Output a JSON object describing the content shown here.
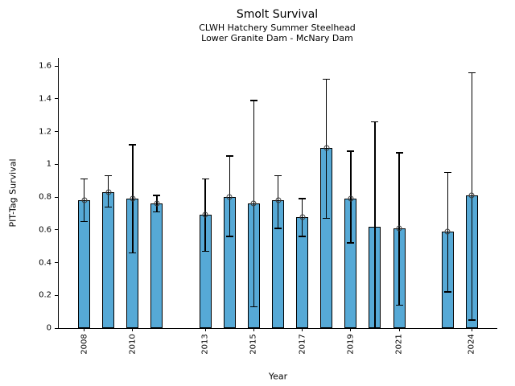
{
  "chart_data": {
    "type": "bar",
    "title": "Smolt Survival",
    "subtitle1": "CLWH Hatchery Summer Steelhead",
    "subtitle2": "Lower Granite Dam - McNary Dam",
    "xlabel": "Year",
    "ylabel": "PIT-Tag Survival",
    "ylim": [
      0,
      1.65
    ],
    "xlim": [
      2006.95,
      2025.05
    ],
    "grid": false,
    "legend": "none",
    "yticks": [
      {
        "v": 0,
        "label": "0"
      },
      {
        "v": 0.2,
        "label": "0.2"
      },
      {
        "v": 0.4,
        "label": "0.4"
      },
      {
        "v": 0.6,
        "label": "0.6"
      },
      {
        "v": 0.8,
        "label": "0.8"
      },
      {
        "v": 1,
        "label": "1"
      },
      {
        "v": 1.2,
        "label": "1.2"
      },
      {
        "v": 1.4,
        "label": "1.4"
      },
      {
        "v": 1.6,
        "label": "1.6"
      }
    ],
    "xticks": [
      "2008",
      "2010",
      "2013",
      "2015",
      "2017",
      "2019",
      "2021",
      "2024"
    ],
    "bar_fill_color": "#56a9d6",
    "bar_edge_color": "#000000",
    "error_bar_color": "#000000",
    "marker_style": "open-circle",
    "bars": [
      {
        "year": 2008,
        "value": 0.78,
        "err_lo": 0.65,
        "err_hi": 0.91,
        "marker": true
      },
      {
        "year": 2009,
        "value": 0.83,
        "err_lo": 0.74,
        "err_hi": 0.93,
        "marker": true
      },
      {
        "year": 2010,
        "value": 0.79,
        "err_lo": 0.46,
        "err_hi": 1.12,
        "marker": true
      },
      {
        "year": 2011,
        "value": 0.76,
        "err_lo": 0.71,
        "err_hi": 0.81,
        "marker": true
      },
      {
        "year": 2013,
        "value": 0.69,
        "err_lo": 0.47,
        "err_hi": 0.91,
        "marker": true
      },
      {
        "year": 2014,
        "value": 0.8,
        "err_lo": 0.56,
        "err_hi": 1.05,
        "marker": true
      },
      {
        "year": 2015,
        "value": 0.76,
        "err_lo": 0.13,
        "err_hi": 1.39,
        "marker": true
      },
      {
        "year": 2016,
        "value": 0.78,
        "err_lo": 0.61,
        "err_hi": 0.93,
        "marker": true
      },
      {
        "year": 2017,
        "value": 0.68,
        "err_lo": 0.56,
        "err_hi": 0.79,
        "marker": true
      },
      {
        "year": 2018,
        "value": 1.1,
        "err_lo": 0.67,
        "err_hi": 1.52,
        "marker": true
      },
      {
        "year": 2019,
        "value": 0.79,
        "err_lo": 0.52,
        "err_hi": 1.08,
        "marker": true
      },
      {
        "year": 2020,
        "value": 0.62,
        "err_lo": 0.0,
        "err_hi": 1.26,
        "marker": false
      },
      {
        "year": 2021,
        "value": 0.61,
        "err_lo": 0.14,
        "err_hi": 1.07,
        "marker": true
      },
      {
        "year": 2023,
        "value": 0.59,
        "err_lo": 0.22,
        "err_hi": 0.95,
        "marker": true
      },
      {
        "year": 2024,
        "value": 0.81,
        "err_lo": 0.05,
        "err_hi": 1.56,
        "marker": true
      }
    ]
  }
}
